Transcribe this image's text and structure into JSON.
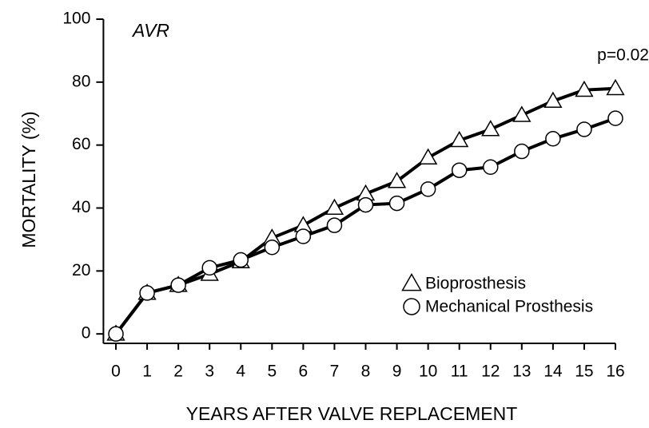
{
  "chart_data": {
    "type": "line",
    "annotations": [
      "AVR",
      "p=0.02"
    ],
    "xlabel": "YEARS AFTER VALVE REPLACEMENT",
    "ylabel": "MORTALITY (%)",
    "x": [
      0,
      1,
      2,
      3,
      4,
      5,
      6,
      7,
      8,
      9,
      10,
      11,
      12,
      13,
      14,
      15,
      16
    ],
    "series": [
      {
        "name": "Bioprosthesis",
        "color": "#000000",
        "marker": "triangle",
        "values": [
          0,
          13,
          15.5,
          19,
          23,
          30.5,
          34.5,
          40,
          44.5,
          48.5,
          56,
          61.5,
          65,
          69.5,
          74,
          77.5,
          78
        ]
      },
      {
        "name": "Mechanical Prosthesis",
        "color": "#000000",
        "marker": "circle",
        "values": [
          0,
          13,
          15.5,
          21,
          23.5,
          27.5,
          31,
          34.5,
          41,
          41.5,
          46,
          52,
          53,
          58,
          62,
          65,
          68.5
        ]
      }
    ],
    "xlim": [
      -0.4,
      16
    ],
    "ylim": [
      -3,
      100
    ],
    "xticks": [
      0,
      1,
      2,
      3,
      4,
      5,
      6,
      7,
      8,
      9,
      10,
      11,
      12,
      13,
      14,
      15,
      16
    ],
    "yticks": [
      0,
      20,
      40,
      60,
      80,
      100
    ],
    "grid": false,
    "legend": "lower right"
  }
}
